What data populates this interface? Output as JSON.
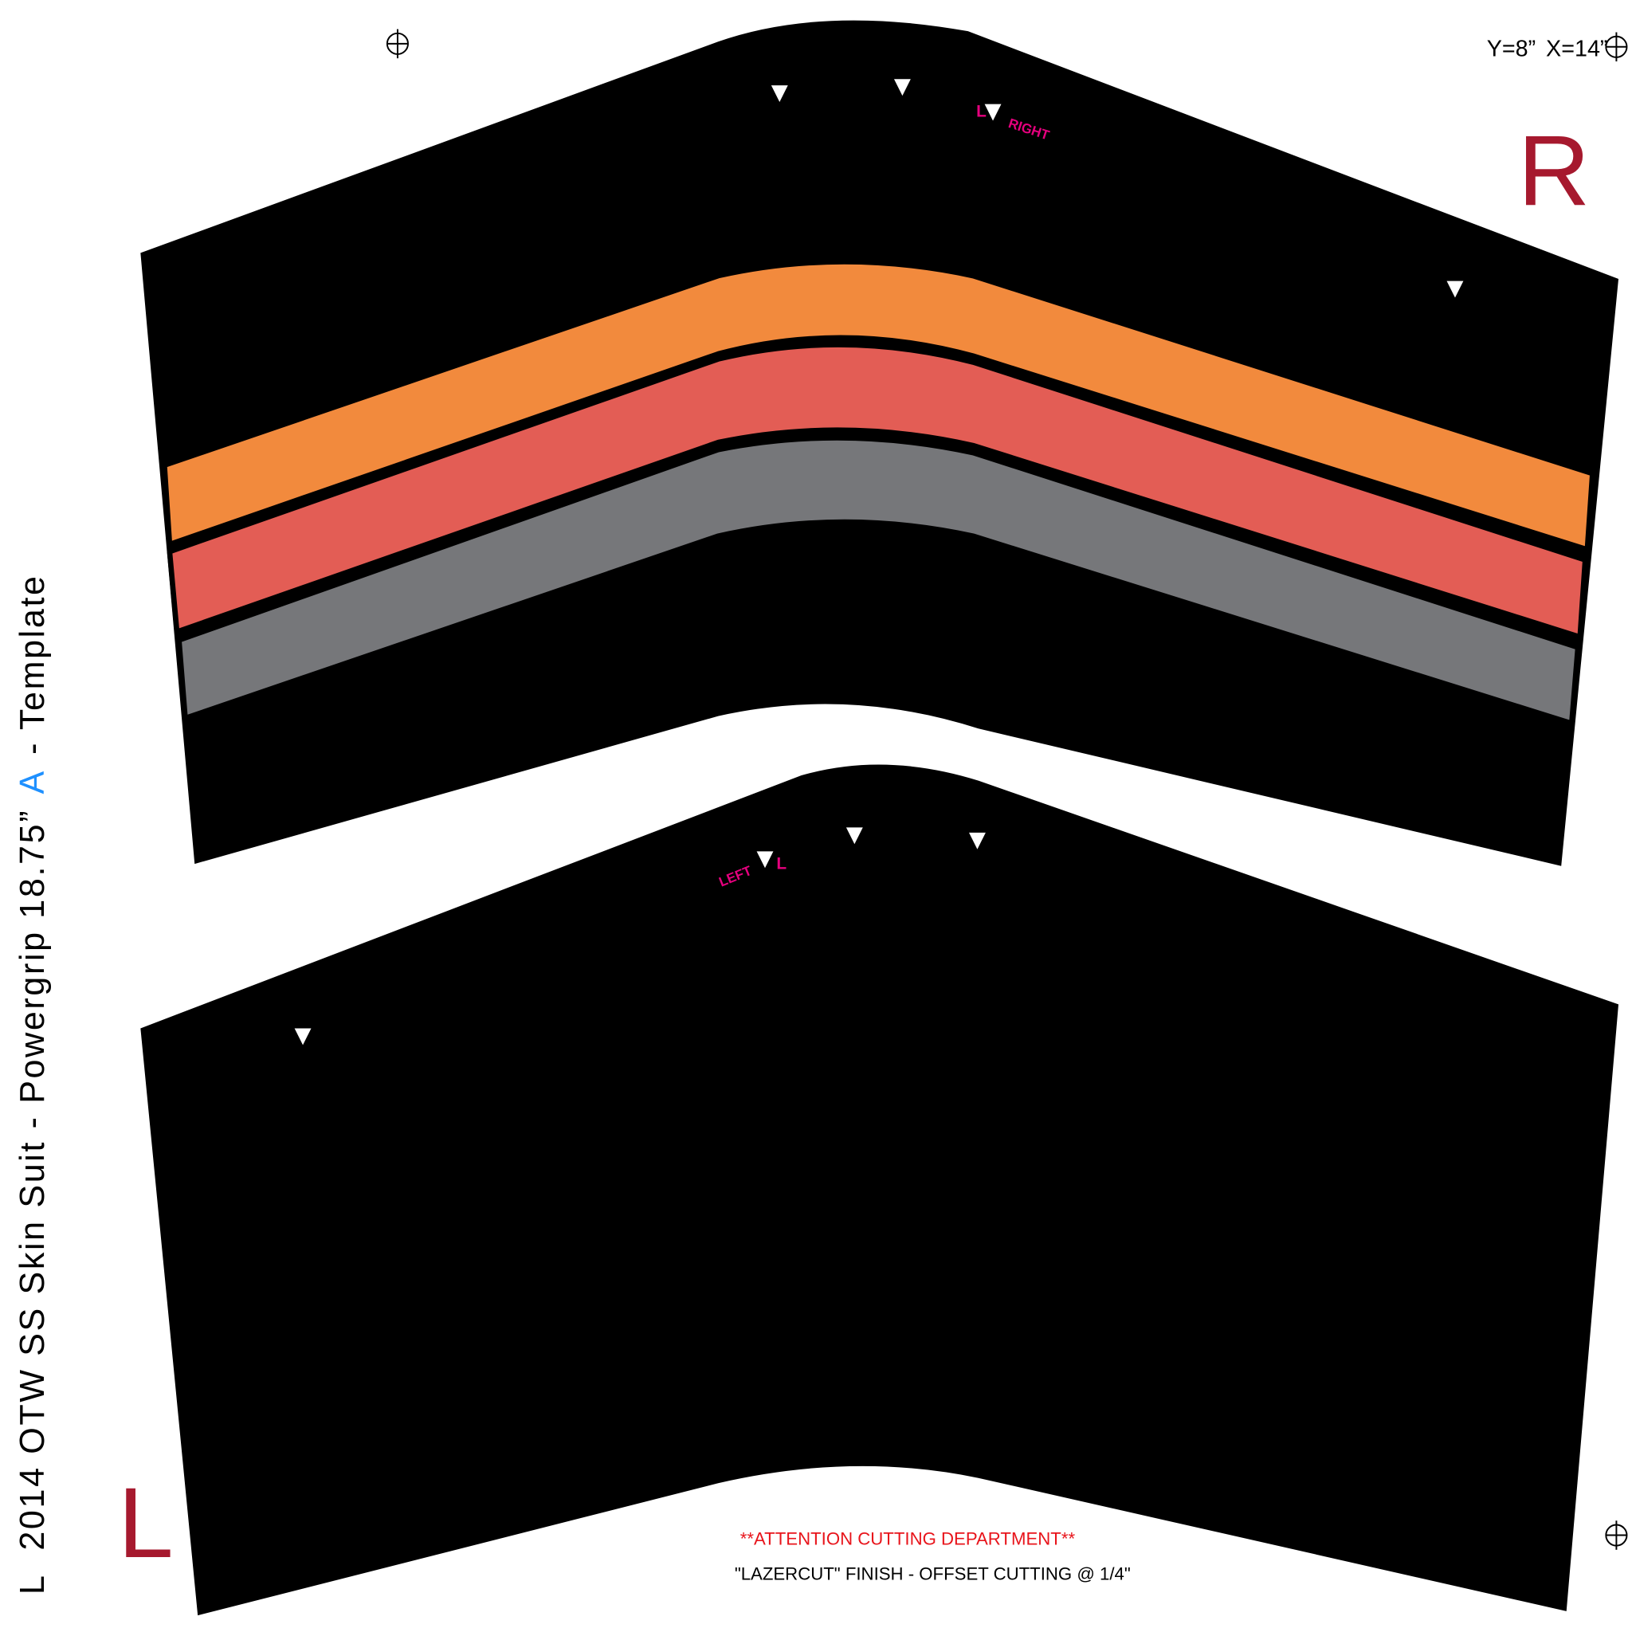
{
  "sheet": {
    "title": {
      "side": "L",
      "name": "2014 OTW SS Skin Suit - Powergrip 18.75”",
      "version": "A",
      "suffix": "- Template"
    },
    "dimensions": {
      "y": "Y=8”",
      "x": "X=14”"
    },
    "panels": {
      "top": {
        "side_letter": "R",
        "marker_left": "L",
        "marker_right": "RIGHT"
      },
      "bottom": {
        "side_letter": "L",
        "marker_left": "LEFT",
        "marker_right": "L"
      }
    },
    "notes": {
      "attention": "**ATTENTION CUTTING DEPARTMENT**",
      "finish": "\"LAZERCUT\" FINISH - OFFSET CUTTING @ 1/4\""
    }
  }
}
